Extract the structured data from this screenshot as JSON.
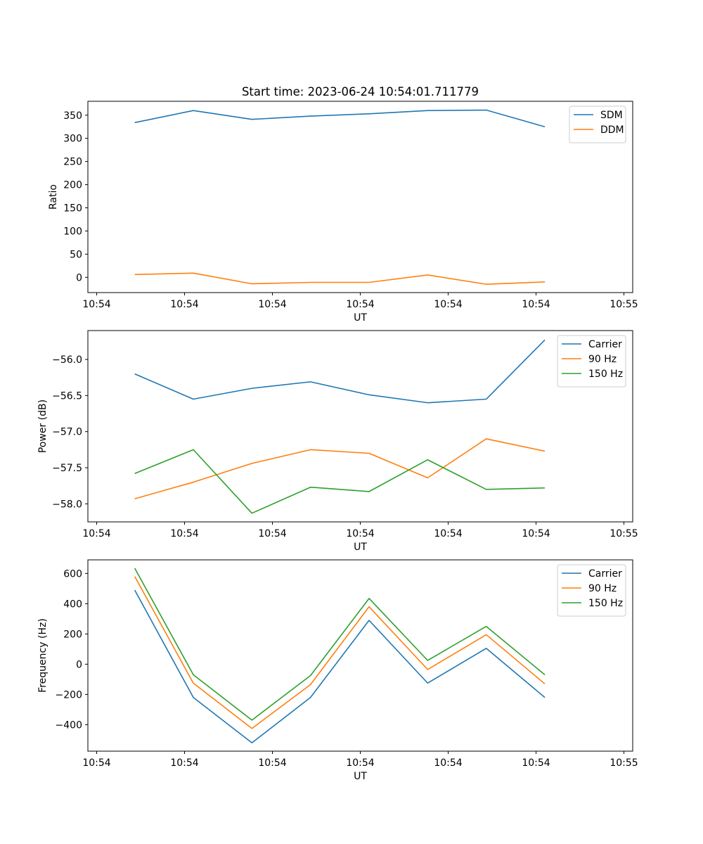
{
  "chart_data": [
    {
      "type": "line",
      "title": "Start time: 2023-06-24 10:54:01.711779",
      "xlabel": "UT",
      "ylabel": "Ratio",
      "x": [
        "10:54:02",
        "10:54:03",
        "10:54:04",
        "10:54:05",
        "10:54:06",
        "10:54:07",
        "10:54:08",
        "10:54:09"
      ],
      "xlim": [
        1.2,
        10.5
      ],
      "ylim": [
        -33,
        380
      ],
      "yticks": [
        0,
        50,
        100,
        150,
        200,
        250,
        300,
        350
      ],
      "xticks": [
        1.35,
        2.85,
        4.35,
        5.85,
        7.35,
        8.85,
        10.35
      ],
      "xtick_labels": [
        "10:54",
        "10:54",
        "10:54",
        "10:54",
        "10:54",
        "10:54",
        "10:55"
      ],
      "legend": "top-right",
      "grid": false,
      "series": [
        {
          "name": "SDM",
          "color": "#1f77b4",
          "values": [
            334,
            360,
            341,
            348,
            353,
            360,
            361,
            325
          ]
        },
        {
          "name": "DDM",
          "color": "#ff7f0e",
          "values": [
            6,
            9,
            -14,
            -11,
            -11,
            5,
            -15,
            -10
          ]
        }
      ]
    },
    {
      "type": "line",
      "title": "",
      "xlabel": "UT",
      "ylabel": "Power (dB)",
      "x": [
        "10:54:02",
        "10:54:03",
        "10:54:04",
        "10:54:05",
        "10:54:06",
        "10:54:07",
        "10:54:08",
        "10:54:09"
      ],
      "xlim": [
        1.2,
        10.5
      ],
      "ylim": [
        -58.25,
        -55.6
      ],
      "yticks": [
        -58.0,
        -57.5,
        -57.0,
        -56.5,
        -56.0
      ],
      "ytick_labels": [
        "−58.0",
        "−57.5",
        "−57.0",
        "−56.5",
        "−56.0"
      ],
      "xticks": [
        1.35,
        2.85,
        4.35,
        5.85,
        7.35,
        8.85,
        10.35
      ],
      "xtick_labels": [
        "10:54",
        "10:54",
        "10:54",
        "10:54",
        "10:54",
        "10:54",
        "10:55"
      ],
      "legend": "top-right",
      "grid": false,
      "series": [
        {
          "name": "Carrier",
          "color": "#1f77b4",
          "values": [
            -56.2,
            -56.55,
            -56.4,
            -56.31,
            -56.49,
            -56.6,
            -56.55,
            -55.73
          ]
        },
        {
          "name": "90 Hz",
          "color": "#ff7f0e",
          "values": [
            -57.93,
            -57.7,
            -57.44,
            -57.25,
            -57.3,
            -57.64,
            -57.1,
            -57.27
          ]
        },
        {
          "name": "150 Hz",
          "color": "#2ca02c",
          "values": [
            -57.58,
            -57.25,
            -58.13,
            -57.77,
            -57.83,
            -57.39,
            -57.8,
            -57.78
          ]
        }
      ]
    },
    {
      "type": "line",
      "title": "",
      "xlabel": "UT",
      "ylabel": "Frequency (Hz)",
      "x": [
        "10:54:02",
        "10:54:03",
        "10:54:04",
        "10:54:05",
        "10:54:06",
        "10:54:07",
        "10:54:08",
        "10:54:09"
      ],
      "xlim": [
        1.2,
        10.5
      ],
      "ylim": [
        -575,
        690
      ],
      "yticks": [
        -400,
        -200,
        0,
        200,
        400,
        600
      ],
      "ytick_labels": [
        "−400",
        "−200",
        "0",
        "200",
        "400",
        "600"
      ],
      "xticks": [
        1.35,
        2.85,
        4.35,
        5.85,
        7.35,
        8.85,
        10.35
      ],
      "xtick_labels": [
        "10:54",
        "10:54",
        "10:54",
        "10:54",
        "10:54",
        "10:54",
        "10:55"
      ],
      "legend": "top-right",
      "grid": false,
      "series": [
        {
          "name": "Carrier",
          "color": "#1f77b4",
          "values": [
            490,
            -220,
            -520,
            -220,
            290,
            -125,
            105,
            -220
          ]
        },
        {
          "name": "90 Hz",
          "color": "#ff7f0e",
          "values": [
            580,
            -125,
            -425,
            -135,
            380,
            -35,
            195,
            -130
          ]
        },
        {
          "name": "150 Hz",
          "color": "#2ca02c",
          "values": [
            635,
            -70,
            -370,
            -75,
            435,
            25,
            250,
            -70
          ]
        }
      ]
    }
  ]
}
